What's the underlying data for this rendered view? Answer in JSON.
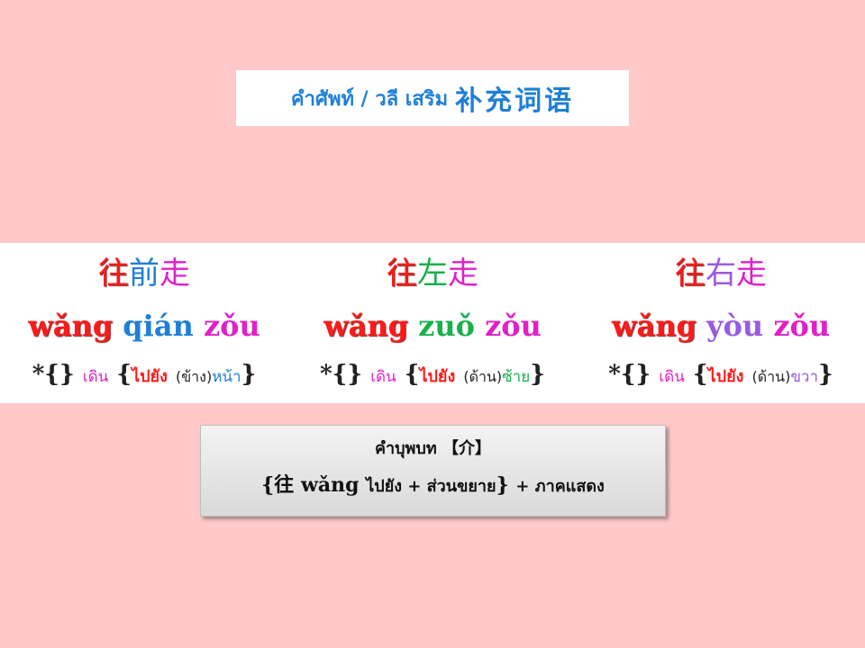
{
  "slide": {
    "background_color": "#ffc9c9",
    "title": {
      "thai": "คำศัพท์ / วลี เสริม",
      "chinese": "补充词语"
    },
    "columns": [
      {
        "hanzi": [
          "往",
          "前",
          "走"
        ],
        "pinyin": [
          "wǎng",
          "qián",
          "zǒu"
        ],
        "gloss": {
          "star": "*{}",
          "walk": "เดิน",
          "to": "ไปยัง",
          "aux": "(ข้าง)",
          "dir": "หน้า"
        }
      },
      {
        "hanzi": [
          "往",
          "左",
          "走"
        ],
        "pinyin": [
          "wǎng",
          "zuǒ",
          "zǒu"
        ],
        "gloss": {
          "star": "*{}",
          "walk": "เดิน",
          "to": "ไปยัง",
          "aux": "(ด้าน)",
          "dir": "ซ้าย"
        }
      },
      {
        "hanzi": [
          "往",
          "右",
          "走"
        ],
        "pinyin": [
          "wǎng",
          "yòu",
          "zǒu"
        ],
        "gloss": {
          "star": "*{}",
          "walk": "เดิน",
          "to": "ไปยัง",
          "aux": "(ด้าน)",
          "dir": "ขวา"
        }
      }
    ],
    "note": {
      "label": "คำบุพบท",
      "pos": "【介】",
      "open": "{",
      "hanzi": "往",
      "pinyin": "wǎng",
      "meaning": "ไปยัง + ส่วนขยาย",
      "close": "}",
      "rest": "+ ภาคแสดง"
    },
    "colors": {
      "title_blue": "#1f7fd8",
      "red": "#ff1a1a",
      "blue": "#1f7fd8",
      "magenta": "#e020c8",
      "green": "#19b04b",
      "purple": "#9a5ae0"
    }
  }
}
